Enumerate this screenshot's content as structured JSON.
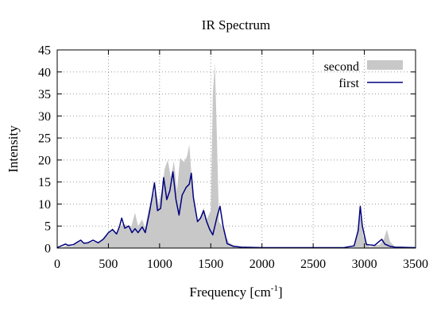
{
  "chart_data": {
    "type": "area",
    "title": "IR Spectrum",
    "xlabel": "Frequency [cm",
    "xlabel_sup": "-1",
    "xlabel_suffix": "]",
    "ylabel": "Intensity",
    "xlim": [
      0,
      3500
    ],
    "ylim": [
      0,
      45
    ],
    "x_ticks": [
      0,
      500,
      1000,
      1500,
      2000,
      2500,
      3000,
      3500
    ],
    "y_ticks": [
      0,
      5,
      10,
      15,
      20,
      25,
      30,
      35,
      40,
      45
    ],
    "grid": true,
    "legend_position": "top-right",
    "series": [
      {
        "name": "second",
        "style": "filled-area",
        "color": "#c8c8c8",
        "points": [
          [
            0,
            0
          ],
          [
            50,
            0.2
          ],
          [
            100,
            0.6
          ],
          [
            150,
            0.4
          ],
          [
            200,
            1.2
          ],
          [
            230,
            1.6
          ],
          [
            260,
            1.0
          ],
          [
            300,
            1.1
          ],
          [
            350,
            1.5
          ],
          [
            400,
            1.1
          ],
          [
            450,
            1.8
          ],
          [
            500,
            3.4
          ],
          [
            540,
            4.5
          ],
          [
            580,
            3.5
          ],
          [
            610,
            4.6
          ],
          [
            640,
            5.5
          ],
          [
            680,
            5.2
          ],
          [
            720,
            4.6
          ],
          [
            760,
            8.0
          ],
          [
            790,
            5.0
          ],
          [
            830,
            6.5
          ],
          [
            860,
            4.6
          ],
          [
            890,
            8.5
          ],
          [
            930,
            11.5
          ],
          [
            960,
            13.5
          ],
          [
            990,
            10.0
          ],
          [
            1020,
            13.0
          ],
          [
            1050,
            18.0
          ],
          [
            1080,
            20.0
          ],
          [
            1110,
            16.0
          ],
          [
            1140,
            19.8
          ],
          [
            1170,
            13.0
          ],
          [
            1200,
            20.5
          ],
          [
            1240,
            19.5
          ],
          [
            1270,
            21.0
          ],
          [
            1290,
            23.5
          ],
          [
            1320,
            14.0
          ],
          [
            1360,
            6.0
          ],
          [
            1400,
            7.0
          ],
          [
            1430,
            9.2
          ],
          [
            1460,
            6.5
          ],
          [
            1500,
            8.5
          ],
          [
            1520,
            35.0
          ],
          [
            1540,
            42.0
          ],
          [
            1560,
            25.0
          ],
          [
            1580,
            6.0
          ],
          [
            1610,
            5.0
          ],
          [
            1640,
            3.0
          ],
          [
            1680,
            1.2
          ],
          [
            1750,
            0.3
          ],
          [
            1850,
            0.1
          ],
          [
            2000,
            0
          ],
          [
            2800,
            0
          ],
          [
            2900,
            0.2
          ],
          [
            2960,
            7.5
          ],
          [
            2990,
            2.5
          ],
          [
            3050,
            0.3
          ],
          [
            3150,
            0.8
          ],
          [
            3190,
            2.0
          ],
          [
            3220,
            4.2
          ],
          [
            3250,
            1.5
          ],
          [
            3300,
            0.2
          ],
          [
            3500,
            0
          ]
        ]
      },
      {
        "name": "first",
        "style": "line",
        "color": "#00007f",
        "points": [
          [
            0,
            0.1
          ],
          [
            50,
            0.6
          ],
          [
            80,
            0.9
          ],
          [
            110,
            0.6
          ],
          [
            160,
            0.8
          ],
          [
            200,
            1.4
          ],
          [
            230,
            1.8
          ],
          [
            260,
            1.1
          ],
          [
            300,
            1.2
          ],
          [
            350,
            1.8
          ],
          [
            400,
            1.2
          ],
          [
            450,
            2.0
          ],
          [
            500,
            3.5
          ],
          [
            540,
            4.2
          ],
          [
            580,
            3.2
          ],
          [
            610,
            5.0
          ],
          [
            630,
            6.8
          ],
          [
            660,
            4.5
          ],
          [
            700,
            5.0
          ],
          [
            730,
            3.5
          ],
          [
            760,
            4.4
          ],
          [
            790,
            3.5
          ],
          [
            830,
            4.8
          ],
          [
            860,
            3.5
          ],
          [
            900,
            8.0
          ],
          [
            930,
            12.0
          ],
          [
            950,
            14.8
          ],
          [
            980,
            8.5
          ],
          [
            1010,
            9.0
          ],
          [
            1040,
            16.0
          ],
          [
            1070,
            11.0
          ],
          [
            1100,
            13.0
          ],
          [
            1130,
            17.3
          ],
          [
            1160,
            11.0
          ],
          [
            1190,
            7.5
          ],
          [
            1220,
            12.0
          ],
          [
            1260,
            13.8
          ],
          [
            1290,
            14.5
          ],
          [
            1310,
            17.0
          ],
          [
            1330,
            11.5
          ],
          [
            1370,
            6.0
          ],
          [
            1400,
            6.8
          ],
          [
            1430,
            8.5
          ],
          [
            1460,
            6.0
          ],
          [
            1490,
            4.2
          ],
          [
            1520,
            3.0
          ],
          [
            1560,
            7.0
          ],
          [
            1590,
            9.5
          ],
          [
            1620,
            5.0
          ],
          [
            1660,
            1.0
          ],
          [
            1720,
            0.4
          ],
          [
            1800,
            0.2
          ],
          [
            2000,
            0.1
          ],
          [
            2800,
            0.1
          ],
          [
            2900,
            0.5
          ],
          [
            2940,
            4.0
          ],
          [
            2960,
            9.5
          ],
          [
            2980,
            5.0
          ],
          [
            3020,
            0.8
          ],
          [
            3100,
            0.6
          ],
          [
            3140,
            1.4
          ],
          [
            3170,
            2.0
          ],
          [
            3200,
            0.9
          ],
          [
            3250,
            0.4
          ],
          [
            3300,
            0.2
          ],
          [
            3500,
            0.1
          ]
        ]
      }
    ]
  }
}
